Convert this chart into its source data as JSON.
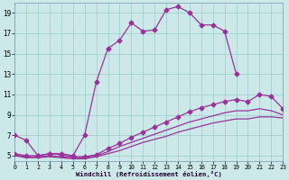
{
  "bg_color": "#cce8e8",
  "grid_color": "#99cccc",
  "line_color": "#993399",
  "xlabel": "Windchill (Refroidissement éolien,°C)",
  "xlim": [
    0,
    23
  ],
  "ylim": [
    4.5,
    20.0
  ],
  "xticks": [
    0,
    1,
    2,
    3,
    4,
    5,
    6,
    7,
    8,
    9,
    10,
    11,
    12,
    13,
    14,
    15,
    16,
    17,
    18,
    19,
    20,
    21,
    22,
    23
  ],
  "yticks": [
    5,
    7,
    9,
    11,
    13,
    15,
    17,
    19
  ],
  "series": [
    {
      "x": [
        0,
        1,
        2,
        3,
        4,
        5,
        6,
        7,
        8,
        9,
        10,
        11,
        12,
        13,
        14,
        15,
        16,
        17,
        18,
        19
      ],
      "y": [
        7.0,
        6.5,
        5.0,
        5.2,
        5.2,
        5.0,
        7.0,
        12.2,
        15.5,
        16.3,
        18.0,
        17.2,
        17.3,
        19.3,
        19.6,
        19.0,
        17.8,
        17.8,
        17.2,
        13.0
      ],
      "marker": "D",
      "ms": 2.5,
      "lw": 0.9
    },
    {
      "x": [
        0,
        1,
        2,
        3,
        4,
        5,
        6,
        7,
        8,
        9,
        10,
        11,
        12,
        13,
        14,
        15,
        16,
        17,
        18,
        19,
        20,
        21,
        22,
        23
      ],
      "y": [
        5.2,
        5.0,
        5.0,
        5.2,
        5.1,
        4.9,
        4.9,
        5.1,
        5.7,
        6.2,
        6.8,
        7.3,
        7.8,
        8.3,
        8.8,
        9.3,
        9.7,
        10.0,
        10.3,
        10.5,
        10.3,
        11.0,
        10.8,
        9.6
      ],
      "marker": "D",
      "ms": 2.5,
      "lw": 0.9
    },
    {
      "x": [
        0,
        1,
        2,
        3,
        4,
        5,
        6,
        7,
        8,
        9,
        10,
        11,
        12,
        13,
        14,
        15,
        16,
        17,
        18,
        19,
        20,
        21,
        22,
        23
      ],
      "y": [
        5.1,
        4.9,
        4.9,
        5.0,
        4.9,
        4.8,
        4.8,
        5.0,
        5.4,
        5.9,
        6.3,
        6.7,
        7.1,
        7.5,
        7.9,
        8.3,
        8.6,
        8.9,
        9.2,
        9.4,
        9.4,
        9.6,
        9.4,
        9.0
      ],
      "marker": null,
      "ms": 0,
      "lw": 0.9
    },
    {
      "x": [
        0,
        1,
        2,
        3,
        4,
        5,
        6,
        7,
        8,
        9,
        10,
        11,
        12,
        13,
        14,
        15,
        16,
        17,
        18,
        19,
        20,
        21,
        22,
        23
      ],
      "y": [
        5.0,
        4.8,
        4.8,
        4.9,
        4.8,
        4.7,
        4.7,
        4.9,
        5.2,
        5.5,
        5.9,
        6.3,
        6.6,
        6.9,
        7.3,
        7.6,
        7.9,
        8.2,
        8.4,
        8.6,
        8.6,
        8.8,
        8.8,
        8.7
      ],
      "marker": null,
      "ms": 0,
      "lw": 0.9
    }
  ]
}
